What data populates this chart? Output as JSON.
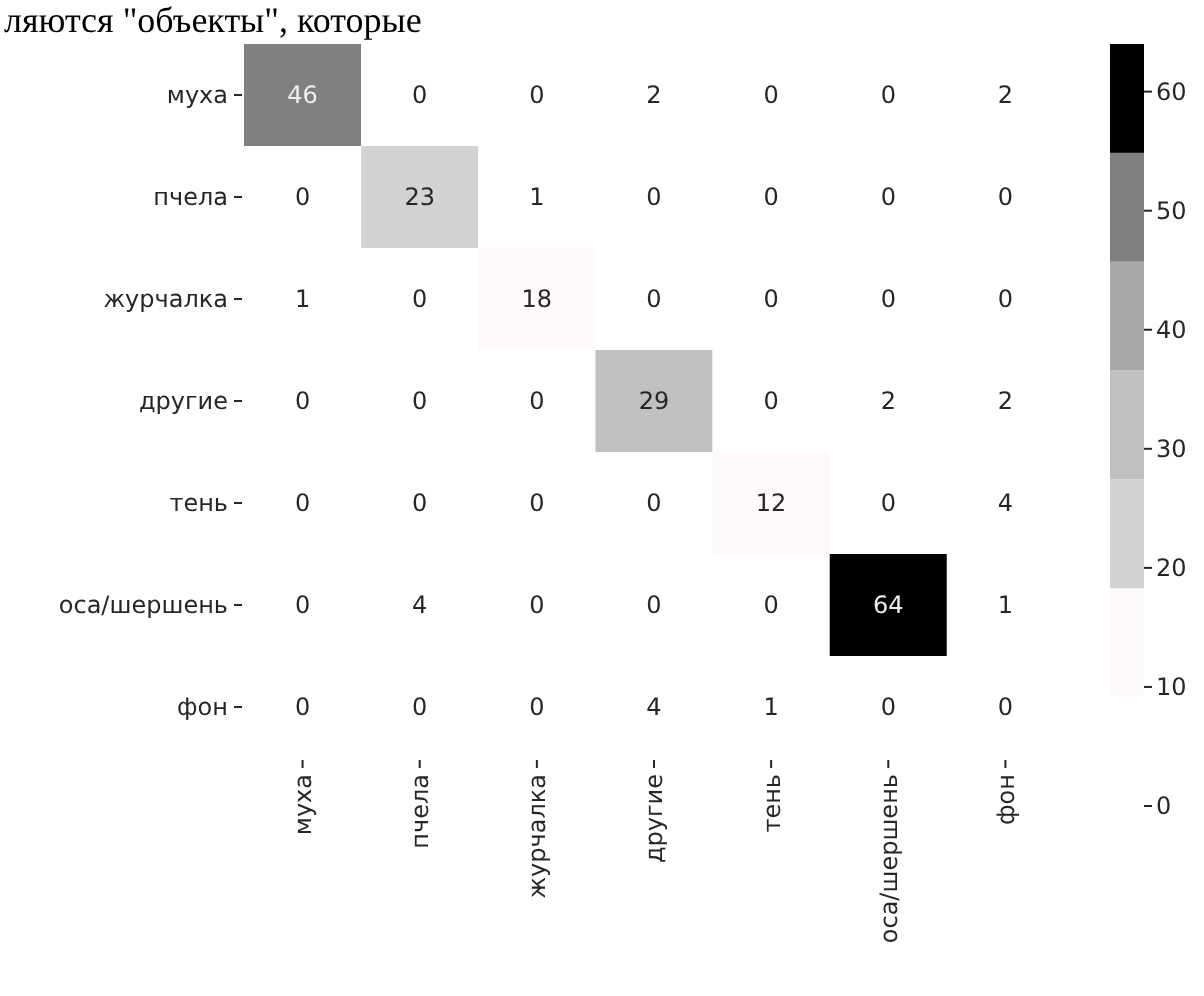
{
  "chart_data": {
    "type": "heatmap",
    "categories": [
      "муха",
      "пчела",
      "журчалка",
      "другие",
      "тень",
      "оса/шершень",
      "фон"
    ],
    "y_categories": [
      "муха",
      "пчела",
      "журчалка",
      "другие",
      "тень",
      "оса/шершень",
      "фон"
    ],
    "cells": [
      [
        46,
        0,
        0,
        2,
        0,
        0,
        2
      ],
      [
        0,
        23,
        1,
        0,
        0,
        0,
        0
      ],
      [
        1,
        0,
        18,
        0,
        0,
        0,
        0
      ],
      [
        0,
        0,
        0,
        29,
        0,
        2,
        2
      ],
      [
        0,
        0,
        0,
        0,
        12,
        0,
        4
      ],
      [
        0,
        4,
        0,
        0,
        0,
        64,
        1
      ],
      [
        0,
        0,
        0,
        4,
        1,
        0,
        0
      ]
    ],
    "colors": [
      "#ffffff",
      "#fffafa",
      "#d3d3d3",
      "#c0c0c0",
      "#a9a9a9",
      "#808080",
      "#000000"
    ],
    "clim": [
      0,
      64
    ],
    "cticks": [
      0,
      10,
      20,
      30,
      40,
      50,
      60
    ],
    "data_labels": true,
    "annotations": [
      "ляются \"объекты\", которые"
    ]
  }
}
